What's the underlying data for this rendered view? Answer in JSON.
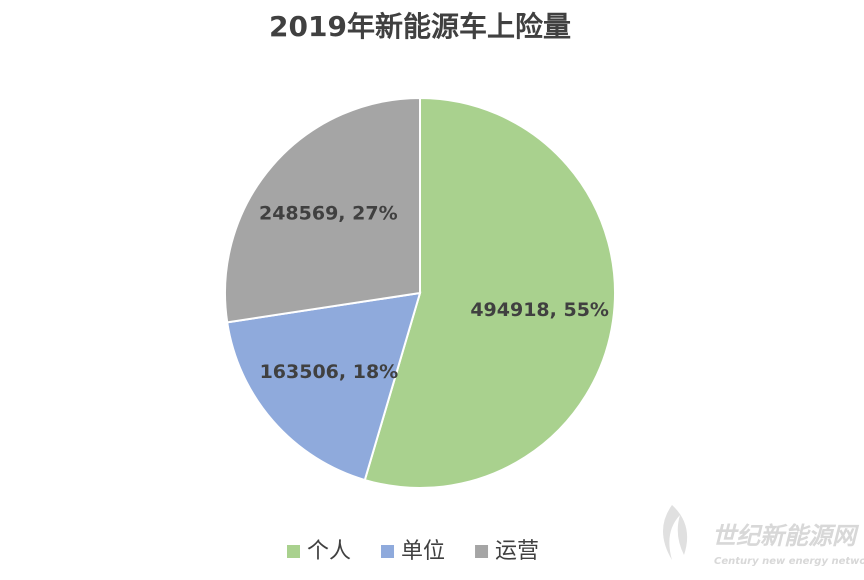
{
  "chart_data": {
    "type": "pie",
    "title": "2019年新能源车上险量",
    "categories": [
      "个人",
      "单位",
      "运营"
    ],
    "values": [
      494918,
      163506,
      248569
    ],
    "value_labels": [
      "494918, 55%",
      "163506, 18%",
      "248569, 27%"
    ],
    "colors": [
      "#a9d18e",
      "#8faadc",
      "#a5a5a5"
    ],
    "legend": "bottom"
  },
  "watermark": {
    "title": "世纪新能源网",
    "subtitle": "Century new energy network"
  }
}
